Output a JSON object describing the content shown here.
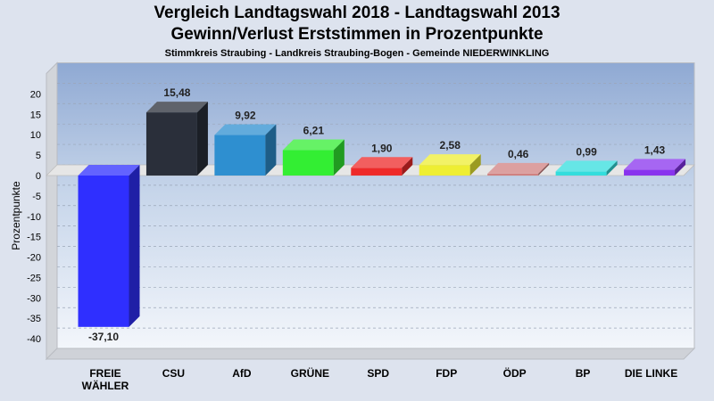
{
  "title": "Vergleich Landtagswahl 2018 - Landtagswahl 2013",
  "subtitle": "Gewinn/Verlust Erststimmen in Prozentpunkte",
  "subsubtitle": "Stimmkreis Straubing - Landkreis Straubing-Bogen - Gemeinde NIEDERWINKLING",
  "chart_data": {
    "type": "bar",
    "title": "Vergleich Landtagswahl 2018 - Landtagswahl 2013",
    "xlabel": "",
    "ylabel": "Prozentpunkte",
    "ylim": [
      -45,
      25
    ],
    "yticks": [
      20,
      15,
      10,
      5,
      0,
      -5,
      -10,
      -15,
      -20,
      -25,
      -30,
      -35,
      -40
    ],
    "grid": true,
    "categories": [
      "FREIE WÄHLER",
      "CSU",
      "AfD",
      "GRÜNE",
      "SPD",
      "FDP",
      "ÖDP",
      "BP",
      "DIE LINKE"
    ],
    "category_lines": [
      [
        "FREIE",
        "WÄHLER"
      ],
      [
        "CSU"
      ],
      [
        "AfD"
      ],
      [
        "GRÜNE"
      ],
      [
        "SPD"
      ],
      [
        "FDP"
      ],
      [
        "ÖDP"
      ],
      [
        "BP"
      ],
      [
        "DIE LINKE"
      ]
    ],
    "values": [
      -37.1,
      15.48,
      9.92,
      6.21,
      1.9,
      2.58,
      0.46,
      0.99,
      1.43
    ],
    "value_labels": [
      "-37,10",
      "15,48",
      "9,92",
      "6,21",
      "1,90",
      "2,58",
      "0,46",
      "0,99",
      "1,43"
    ],
    "colors": [
      "#2f2fff",
      "#2a2f3a",
      "#2e8fd0",
      "#33ee33",
      "#ee2a2a",
      "#eeee33",
      "#d08080",
      "#33dddd",
      "#8833ee"
    ]
  }
}
